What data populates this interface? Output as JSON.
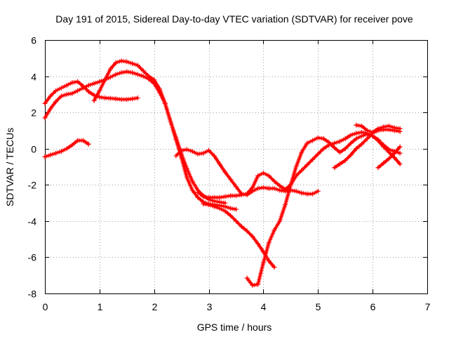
{
  "chart_data": {
    "type": "line",
    "title": "Day 191 of 2015, Sidereal Day-to-day VTEC variation (SDTVAR) for receiver pove",
    "xlabel": "GPS time / hours",
    "ylabel": "SDTVAR / TECUs",
    "xlim": [
      0,
      7
    ],
    "ylim": [
      -8,
      6
    ],
    "xticks": [
      0,
      1,
      2,
      3,
      4,
      5,
      6,
      7
    ],
    "yticks": [
      -8,
      -6,
      -4,
      -2,
      0,
      2,
      4,
      6
    ],
    "grid": true,
    "marker": "+",
    "series_color": "#ff0000",
    "series": [
      {
        "x": [
          0.0,
          0.1,
          0.2,
          0.3,
          0.4,
          0.5,
          0.6,
          0.7,
          0.8
        ],
        "y": [
          -0.45,
          -0.35,
          -0.25,
          -0.15,
          0.0,
          0.2,
          0.45,
          0.45,
          0.25
        ]
      },
      {
        "x": [
          0.0,
          0.1,
          0.2,
          0.3,
          0.4,
          0.5,
          0.6,
          0.7,
          0.8,
          0.9,
          1.0,
          1.1,
          1.2,
          1.3,
          1.4,
          1.5,
          1.6,
          1.7
        ],
        "y": [
          2.5,
          2.9,
          3.2,
          3.35,
          3.5,
          3.65,
          3.7,
          3.45,
          3.15,
          2.95,
          2.85,
          2.8,
          2.78,
          2.75,
          2.72,
          2.72,
          2.75,
          2.8
        ]
      },
      {
        "x": [
          0.0,
          0.1,
          0.2,
          0.3,
          0.4,
          0.5,
          0.6,
          0.7,
          0.8,
          0.9,
          1.0,
          1.1,
          1.2,
          1.3,
          1.4,
          1.5,
          1.6,
          1.7,
          1.8,
          1.9,
          2.0,
          2.1,
          2.2,
          2.3,
          2.4,
          2.5,
          2.6,
          2.7,
          2.8,
          2.9,
          3.0,
          3.1,
          3.2,
          3.3
        ],
        "y": [
          1.7,
          2.2,
          2.6,
          2.9,
          3.0,
          3.05,
          3.2,
          3.35,
          3.5,
          3.6,
          3.7,
          3.8,
          3.95,
          4.1,
          4.2,
          4.25,
          4.2,
          4.1,
          4.0,
          3.85,
          3.6,
          3.1,
          2.5,
          1.5,
          0.6,
          -0.3,
          -1.1,
          -1.8,
          -2.3,
          -2.6,
          -2.8,
          -2.9,
          -2.95,
          -3.0
        ]
      },
      {
        "x": [
          0.9,
          1.0,
          1.1,
          1.2,
          1.3,
          1.4,
          1.5,
          1.6,
          1.7,
          1.8,
          1.9,
          2.0,
          2.1,
          2.2,
          2.3,
          2.4,
          2.5,
          2.6,
          2.7,
          2.8,
          2.9,
          3.0,
          3.1,
          3.2,
          3.3,
          3.4,
          3.5
        ],
        "y": [
          2.65,
          3.2,
          3.8,
          4.4,
          4.75,
          4.85,
          4.8,
          4.7,
          4.6,
          4.3,
          4.0,
          3.8,
          3.3,
          2.5,
          1.5,
          0.5,
          -0.5,
          -1.6,
          -2.3,
          -2.7,
          -2.95,
          -3.05,
          -3.1,
          -3.15,
          -3.2,
          -3.3,
          -3.35
        ]
      },
      {
        "x": [
          2.4,
          2.5,
          2.6,
          2.7,
          2.8,
          2.9,
          3.0,
          3.1,
          3.2,
          3.3,
          3.4,
          3.5,
          3.6,
          3.7,
          3.8,
          3.9,
          4.0,
          4.1,
          4.2,
          4.3,
          4.4,
          4.5,
          4.6,
          4.7,
          4.8,
          4.9,
          5.0
        ],
        "y": [
          -0.4,
          -0.1,
          -0.05,
          -0.15,
          -0.3,
          -0.25,
          -0.1,
          -0.4,
          -0.85,
          -1.3,
          -1.7,
          -2.1,
          -2.5,
          -2.55,
          -2.35,
          -2.2,
          -2.15,
          -2.2,
          -2.2,
          -2.3,
          -2.35,
          -2.3,
          -2.35,
          -2.45,
          -2.5,
          -2.5,
          -2.35
        ]
      },
      {
        "x": [
          2.8,
          2.9,
          3.0,
          3.1,
          3.2,
          3.3,
          3.4,
          3.5,
          3.6,
          3.7,
          3.8,
          3.9,
          4.0,
          4.1,
          4.2,
          4.3,
          4.4,
          4.5,
          4.6,
          4.7,
          4.8,
          4.9,
          5.0,
          5.1,
          5.2,
          5.3,
          5.4,
          5.5,
          5.6,
          5.7,
          5.8,
          5.9,
          6.0,
          6.1,
          6.2,
          6.3,
          6.4,
          6.5
        ],
        "y": [
          -2.4,
          -2.65,
          -2.7,
          -2.7,
          -2.7,
          -2.65,
          -2.6,
          -2.6,
          -2.55,
          -2.5,
          -2.15,
          -1.5,
          -1.35,
          -1.5,
          -1.8,
          -2.05,
          -2.25,
          -2.0,
          -1.5,
          -1.2,
          -0.9,
          -0.6,
          -0.3,
          0.0,
          0.2,
          0.3,
          0.4,
          0.55,
          0.75,
          0.85,
          0.9,
          0.85,
          0.7,
          0.45,
          0.1,
          -0.2,
          -0.5,
          -0.85
        ]
      },
      {
        "x": [
          3.7,
          3.8,
          3.9,
          4.0,
          4.1,
          4.2,
          4.3,
          4.4,
          4.5,
          4.6,
          4.7,
          4.8,
          4.9,
          5.0,
          5.1,
          5.2,
          5.3,
          5.4,
          5.5,
          5.6,
          5.7,
          5.8,
          5.9,
          6.0,
          6.1,
          6.2,
          6.3,
          6.4,
          6.5
        ],
        "y": [
          -7.15,
          -7.55,
          -7.5,
          -6.3,
          -5.2,
          -4.5,
          -4.0,
          -3.1,
          -2.0,
          -1.0,
          -0.2,
          0.3,
          0.45,
          0.6,
          0.55,
          0.35,
          0.05,
          -0.2,
          0.0,
          0.3,
          0.55,
          0.7,
          0.8,
          0.7,
          0.5,
          0.2,
          -0.05,
          -0.15,
          -0.25
        ]
      },
      {
        "x": [
          2.9,
          3.0,
          3.1,
          3.2,
          3.3,
          3.4,
          3.5,
          3.6,
          3.7,
          3.8,
          3.9,
          4.0,
          4.1,
          4.2
        ],
        "y": [
          -3.05,
          -3.1,
          -3.2,
          -3.3,
          -3.45,
          -3.7,
          -4.0,
          -4.3,
          -4.55,
          -4.85,
          -5.25,
          -5.7,
          -6.2,
          -6.55
        ]
      },
      {
        "x": [
          5.3,
          5.4,
          5.5,
          5.6,
          5.7,
          5.8,
          5.9,
          6.0,
          6.1,
          6.2,
          6.3,
          6.4,
          6.5
        ],
        "y": [
          -1.05,
          -0.85,
          -0.65,
          -0.35,
          0.0,
          0.25,
          0.55,
          0.85,
          1.0,
          1.05,
          1.05,
          1.0,
          0.95
        ]
      },
      {
        "x": [
          5.7,
          5.8,
          5.9,
          6.0,
          6.1,
          6.2,
          6.3,
          6.4,
          6.5
        ],
        "y": [
          1.3,
          1.25,
          1.0,
          0.9,
          1.1,
          1.2,
          1.25,
          1.15,
          1.1
        ]
      },
      {
        "x": [
          6.1,
          6.2,
          6.3,
          6.4,
          6.5
        ],
        "y": [
          -1.05,
          -0.8,
          -0.55,
          -0.25,
          0.1
        ]
      }
    ]
  }
}
